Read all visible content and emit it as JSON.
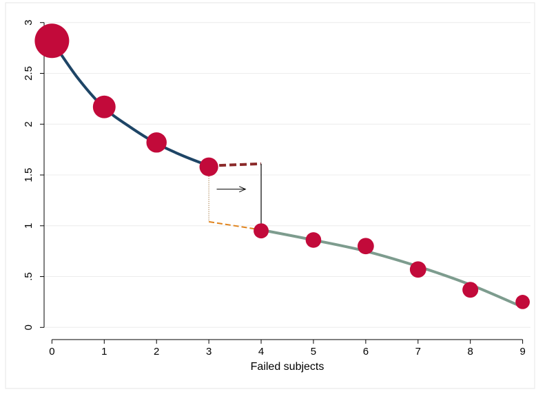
{
  "chart_data": {
    "type": "scatter",
    "xlabel": "Failed subjects",
    "ylabel": "",
    "xlim": [
      -0.15,
      9.15
    ],
    "ylim": [
      -0.12,
      3.1
    ],
    "x_ticks": [
      0,
      1,
      2,
      3,
      4,
      5,
      6,
      7,
      8,
      9
    ],
    "y_ticks": [
      0,
      0.5,
      1,
      1.5,
      2,
      2.5,
      3
    ],
    "y_tick_labels": [
      "0",
      ".5",
      "1",
      "1.5",
      "2",
      "2.5",
      "3"
    ],
    "grid": true,
    "colors": {
      "points": "#c20a3a",
      "fit_low": "#1e4566",
      "fit_high": "#7d9c8e",
      "extension_low": "#8b2a2a",
      "extension_high": "#e0841e",
      "grid": "#ececec"
    },
    "series": [
      {
        "points": [
          {
            "x": 0,
            "y": 2.82,
            "weight": 1.0
          },
          {
            "x": 1,
            "y": 2.17,
            "weight": 0.55
          },
          {
            "x": 2,
            "y": 1.82,
            "weight": 0.46
          },
          {
            "x": 3,
            "y": 1.58,
            "weight": 0.4
          }
        ]
      },
      {
        "points": [
          {
            "x": 4,
            "y": 0.95,
            "weight": 0.26
          },
          {
            "x": 5,
            "y": 0.86,
            "weight": 0.28
          },
          {
            "x": 6,
            "y": 0.8,
            "weight": 0.31
          },
          {
            "x": 7,
            "y": 0.57,
            "weight": 0.31
          },
          {
            "x": 8,
            "y": 0.37,
            "weight": 0.29
          },
          {
            "x": 9,
            "y": 0.25,
            "weight": 0.23
          }
        ]
      }
    ],
    "fit_low": [
      [
        0,
        2.82
      ],
      [
        0.5,
        2.45
      ],
      [
        1,
        2.16
      ],
      [
        1.5,
        1.97
      ],
      [
        2,
        1.81
      ],
      [
        2.5,
        1.69
      ],
      [
        3,
        1.59
      ]
    ],
    "fit_high": [
      [
        4,
        0.96
      ],
      [
        5,
        0.86
      ],
      [
        6,
        0.75
      ],
      [
        7,
        0.6
      ],
      [
        8,
        0.42
      ],
      [
        9,
        0.2
      ]
    ],
    "extension_low": [
      [
        3,
        1.59
      ],
      [
        4,
        1.61
      ]
    ],
    "extension_high": [
      [
        3,
        1.04
      ],
      [
        4,
        0.96
      ]
    ],
    "discontinuity_at": 4,
    "arrow": {
      "from": 3.15,
      "to": 3.7,
      "y": 1.36
    }
  }
}
